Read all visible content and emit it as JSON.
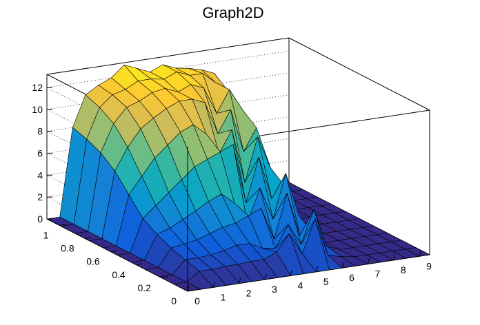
{
  "chart_data": {
    "type": "surface",
    "title": "Graph2D",
    "xlim": [
      0,
      9.4
    ],
    "ylim": [
      0,
      1.1
    ],
    "zlim": [
      0,
      13.2
    ],
    "x_ticks": [
      "0",
      "1",
      "2",
      "3",
      "4",
      "5",
      "6",
      "7",
      "8",
      "9"
    ],
    "y_ticks": [
      "0",
      "0.2",
      "0.4",
      "0.6",
      "0.8",
      "1"
    ],
    "z_ticks": [
      "0",
      "2",
      "4",
      "6",
      "8",
      "10",
      "12"
    ],
    "z_grid": true,
    "colormap": [
      "#352a87",
      "#0f5cdd",
      "#1481d6",
      "#06a4ca",
      "#2eb7a4",
      "#87bf77",
      "#d1bb59",
      "#fec832",
      "#f9fb0e"
    ],
    "outline_color": "#000000",
    "surface_rows": [
      {
        "x": 0.0,
        "z": [
          0,
          0,
          0,
          0,
          0,
          0,
          0,
          0,
          0,
          0,
          0
        ]
      },
      {
        "x": 0.5,
        "z": [
          0,
          0,
          0,
          0,
          0,
          0,
          0,
          0,
          0,
          0,
          0
        ]
      },
      {
        "x": 1.0,
        "z": [
          0,
          0.8,
          1.2,
          1.6,
          2.2,
          3.0,
          4.5,
          6.0,
          7.0,
          7.6,
          8.0
        ]
      },
      {
        "x": 1.5,
        "z": [
          0,
          0.8,
          1.2,
          1.8,
          2.6,
          4.0,
          6.0,
          8.0,
          9.5,
          10.3,
          10.8
        ]
      },
      {
        "x": 2.0,
        "z": [
          0,
          0.9,
          1.3,
          2.0,
          3.2,
          5.0,
          7.5,
          9.5,
          10.8,
          11.3,
          11.5
        ]
      },
      {
        "x": 2.5,
        "z": [
          0,
          0.9,
          1.5,
          2.4,
          3.8,
          6.0,
          8.5,
          10.3,
          11.2,
          11.6,
          12.0
        ]
      },
      {
        "x": 3.0,
        "z": [
          0,
          1.0,
          1.8,
          2.8,
          4.5,
          7.0,
          9.5,
          11.0,
          11.8,
          12.2,
          13.0
        ]
      },
      {
        "x": 3.5,
        "z": [
          0,
          1.0,
          1.8,
          3.0,
          5.0,
          7.5,
          10.0,
          11.5,
          12.0,
          12.2,
          12.5
        ]
      },
      {
        "x": 4.0,
        "z": [
          0,
          1.5,
          1.2,
          3.5,
          4.0,
          8.0,
          9.0,
          11.5,
          11.5,
          12.0,
          12.0
        ]
      },
      {
        "x": 4.5,
        "z": [
          0,
          3.0,
          1.0,
          4.0,
          2.0,
          8.5,
          7.0,
          11.0,
          12.0,
          12.5,
          12.5
        ]
      },
      {
        "x": 5.0,
        "z": [
          0,
          1.0,
          3.0,
          1.0,
          5.0,
          3.0,
          9.0,
          8.0,
          11.5,
          12.0,
          12.0
        ]
      },
      {
        "x": 5.5,
        "z": [
          0,
          4.0,
          1.0,
          5.0,
          2.0,
          7.0,
          4.0,
          10.0,
          9.0,
          12.0,
          11.8
        ]
      },
      {
        "x": 6.0,
        "z": [
          0,
          0.5,
          4.0,
          1.0,
          6.0,
          3.0,
          8.0,
          6.0,
          11.0,
          11.0,
          11.5
        ]
      },
      {
        "x": 6.5,
        "z": [
          0,
          0.2,
          0.5,
          1.0,
          2.0,
          4.0,
          5.0,
          8.0,
          9.0,
          10.0,
          11.0
        ]
      },
      {
        "x": 7.0,
        "z": [
          0,
          0,
          0,
          0,
          0,
          0,
          0,
          0,
          0,
          0,
          0
        ]
      },
      {
        "x": 7.5,
        "z": [
          0,
          0,
          0,
          0,
          0,
          0,
          0,
          0,
          0,
          0,
          0
        ]
      },
      {
        "x": 8.0,
        "z": [
          0,
          0,
          0,
          0,
          0,
          0,
          0,
          0,
          0,
          0,
          0
        ]
      },
      {
        "x": 8.5,
        "z": [
          0,
          0,
          0,
          0,
          0,
          0,
          0,
          0,
          0,
          0,
          0
        ]
      },
      {
        "x": 9.0,
        "z": [
          0,
          0,
          0,
          0,
          0,
          0,
          0,
          0,
          0,
          0,
          0
        ]
      },
      {
        "x": 9.4,
        "z": [
          0,
          0,
          0,
          0,
          0,
          0,
          0,
          0,
          0,
          0,
          0
        ]
      }
    ],
    "surface_y": [
      0,
      0.11,
      0.22,
      0.33,
      0.44,
      0.55,
      0.66,
      0.77,
      0.88,
      0.99,
      1.1
    ]
  }
}
